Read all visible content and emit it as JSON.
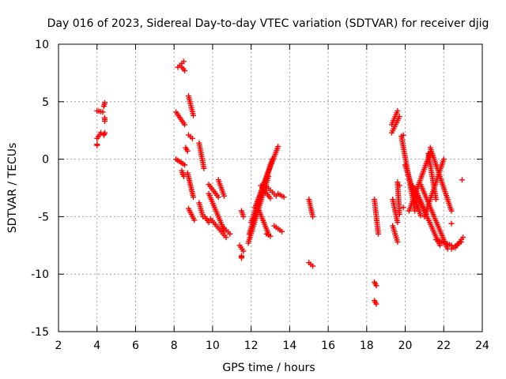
{
  "chart_data": {
    "type": "scatter",
    "title": "Day 016 of 2023, Sidereal Day-to-day VTEC variation (SDTVAR) for receiver djig",
    "xlabel": "GPS time / hours",
    "ylabel": "SDTVAR / TECUs",
    "xlim": [
      2,
      24
    ],
    "ylim": [
      -15,
      10
    ],
    "xticks": [
      2,
      4,
      6,
      8,
      10,
      12,
      14,
      16,
      18,
      20,
      22,
      24
    ],
    "yticks": [
      -15,
      -10,
      -5,
      0,
      5,
      10
    ],
    "grid": true,
    "marker": "+",
    "color": "#ff0000",
    "series": [
      {
        "name": "SDTVAR",
        "segments": [
          [
            4.0,
            4.3,
            4.2,
            4.1
          ],
          [
            4.0,
            4.0,
            1.2,
            1.3
          ],
          [
            4.0,
            4.2,
            1.8,
            2.3
          ],
          [
            4.35,
            4.4,
            4.6,
            4.9
          ],
          [
            4.4,
            4.4,
            3.3,
            3.6
          ],
          [
            4.35,
            4.4,
            2.1,
            2.3
          ],
          [
            8.2,
            8.5,
            8.0,
            8.5
          ],
          [
            8.4,
            8.55,
            8.0,
            7.7
          ],
          [
            8.1,
            8.55,
            4.1,
            3.0
          ],
          [
            8.1,
            8.55,
            0.0,
            -0.5
          ],
          [
            8.4,
            8.5,
            -1.0,
            -1.5
          ],
          [
            8.6,
            8.7,
            1.0,
            0.7
          ],
          [
            8.75,
            9.0,
            5.5,
            3.8
          ],
          [
            8.75,
            8.95,
            2.1,
            1.8
          ],
          [
            8.7,
            9.0,
            -1.2,
            -3.3
          ],
          [
            8.75,
            9.05,
            -4.3,
            -5.3
          ],
          [
            9.3,
            9.55,
            1.4,
            -0.8
          ],
          [
            9.3,
            9.5,
            -3.8,
            -5.0
          ],
          [
            9.6,
            9.8,
            -5.0,
            -5.5
          ],
          [
            9.8,
            10.3,
            -2.2,
            -3.3
          ],
          [
            9.8,
            10.6,
            -3.0,
            -6.2
          ],
          [
            9.9,
            10.7,
            -5.2,
            -6.8
          ],
          [
            10.3,
            10.6,
            -1.8,
            -3.2
          ],
          [
            10.6,
            10.9,
            -6.0,
            -6.5
          ],
          [
            11.5,
            11.6,
            -4.5,
            -5.0
          ],
          [
            11.4,
            11.6,
            -7.5,
            -8.0
          ],
          [
            11.5,
            11.5,
            -8.4,
            -8.6
          ],
          [
            11.85,
            12.9,
            -7.3,
            -1.5
          ],
          [
            11.9,
            13.0,
            -6.5,
            -0.5
          ],
          [
            12.0,
            13.1,
            -5.5,
            0.0
          ],
          [
            12.2,
            13.4,
            -4.2,
            1.1
          ],
          [
            12.3,
            12.9,
            -4.0,
            -6.5
          ],
          [
            12.7,
            13.3,
            -2.2,
            -3.2
          ],
          [
            12.5,
            13.0,
            -2.3,
            -3.4
          ],
          [
            13.4,
            13.7,
            -3.0,
            -3.3
          ],
          [
            12.8,
            13.0,
            -6.5,
            -6.7
          ],
          [
            13.2,
            13.6,
            -5.8,
            -6.3
          ],
          [
            15.0,
            15.2,
            -3.5,
            -5.0
          ],
          [
            15.0,
            15.2,
            -9.0,
            -9.3
          ],
          [
            18.4,
            18.5,
            -10.7,
            -11.0
          ],
          [
            18.4,
            18.5,
            -12.3,
            -12.6
          ],
          [
            18.4,
            18.6,
            -3.5,
            -6.5
          ],
          [
            19.3,
            19.6,
            3.0,
            4.2
          ],
          [
            19.3,
            19.7,
            2.3,
            3.7
          ],
          [
            19.35,
            19.6,
            -3.5,
            -5.5
          ],
          [
            19.35,
            19.6,
            -5.8,
            -7.2
          ],
          [
            19.6,
            19.7,
            -2.0,
            -4.8
          ],
          [
            19.8,
            20.5,
            2.0,
            -4.5
          ],
          [
            20.0,
            20.8,
            -0.5,
            -4.9
          ],
          [
            20.5,
            21.1,
            -2.5,
            -4.8
          ],
          [
            20.2,
            21.3,
            -4.5,
            0.6
          ],
          [
            20.6,
            21.8,
            -3.0,
            -7.5
          ],
          [
            20.8,
            22.2,
            -2.2,
            -7.8
          ],
          [
            21.2,
            21.6,
            0.5,
            -3.5
          ],
          [
            21.0,
            22.0,
            -5.0,
            0.0
          ],
          [
            21.3,
            22.4,
            1.0,
            -4.5
          ],
          [
            21.6,
            22.4,
            -7.0,
            -7.5
          ],
          [
            22.4,
            22.9,
            -7.8,
            -7.2
          ],
          [
            22.6,
            23.0,
            -7.7,
            -6.8
          ]
        ],
        "singles": [
          [
            8.45,
            -1.3
          ],
          [
            19.9,
            2.1
          ],
          [
            19.7,
            -2.3
          ],
          [
            19.9,
            -4.2
          ],
          [
            22.4,
            -5.6
          ],
          [
            22.95,
            -1.8
          ],
          [
            20.4,
            -2.4
          ]
        ]
      }
    ]
  }
}
